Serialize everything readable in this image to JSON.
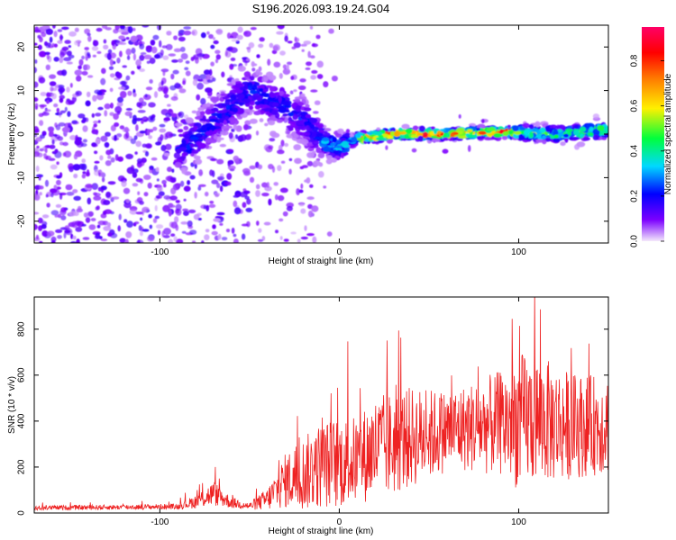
{
  "title": "S196.2026.093.19.24.G04",
  "chart_data": [
    {
      "type": "heatmap",
      "xlabel": "Height of straight line (km)",
      "ylabel": "Frequency (Hz)",
      "xlim": [
        -170,
        150
      ],
      "ylim": [
        -25,
        25
      ],
      "xticks": [
        -100,
        0,
        100
      ],
      "yticks": [
        -20,
        -10,
        0,
        10,
        20
      ],
      "ridge": {
        "description_x": [
          -85,
          -70,
          -50,
          -35,
          -20,
          -8,
          0,
          10,
          30,
          60,
          90,
          120,
          150
        ],
        "frequency_hz": [
          -3,
          3,
          10,
          7,
          3,
          -2,
          -3,
          -1,
          0,
          0,
          0.5,
          0,
          1
        ]
      },
      "colorbar": {
        "label": "Normalized spectral amplitude",
        "range": [
          0,
          0.95
        ],
        "ticks": [
          "0.0",
          "0.2",
          "0.4",
          "0.6",
          "0.8"
        ],
        "colors": [
          "#f4e9fb",
          "#7b00ff",
          "#0000ff",
          "#00d8ff",
          "#00ff3c",
          "#fff000",
          "#ff7a00",
          "#ff0000",
          "#ff0066"
        ]
      }
    },
    {
      "type": "line",
      "xlabel": "Height of straight line (km)",
      "ylabel": "SNR (10 * v/v)",
      "xlim": [
        -170,
        150
      ],
      "ylim": [
        0,
        940
      ],
      "xticks": [
        -100,
        0,
        100
      ],
      "yticks": [
        0,
        200,
        400,
        600,
        800
      ],
      "color": "#ee2222",
      "envelope_x": [
        -170,
        -90,
        -80,
        -70,
        -60,
        -50,
        -40,
        -30,
        -20,
        -10,
        0,
        10,
        20,
        30,
        40,
        50,
        60,
        70,
        80,
        90,
        100,
        110,
        120,
        130,
        140,
        150
      ],
      "envelope_mean": [
        22,
        28,
        50,
        85,
        45,
        30,
        60,
        140,
        170,
        210,
        220,
        230,
        280,
        300,
        330,
        340,
        360,
        370,
        380,
        390,
        400,
        410,
        390,
        380,
        380,
        390
      ],
      "envelope_spread": [
        10,
        12,
        30,
        55,
        25,
        15,
        50,
        120,
        160,
        190,
        200,
        190,
        230,
        230,
        220,
        200,
        180,
        190,
        210,
        230,
        300,
        280,
        260,
        230,
        220,
        220
      ]
    }
  ]
}
